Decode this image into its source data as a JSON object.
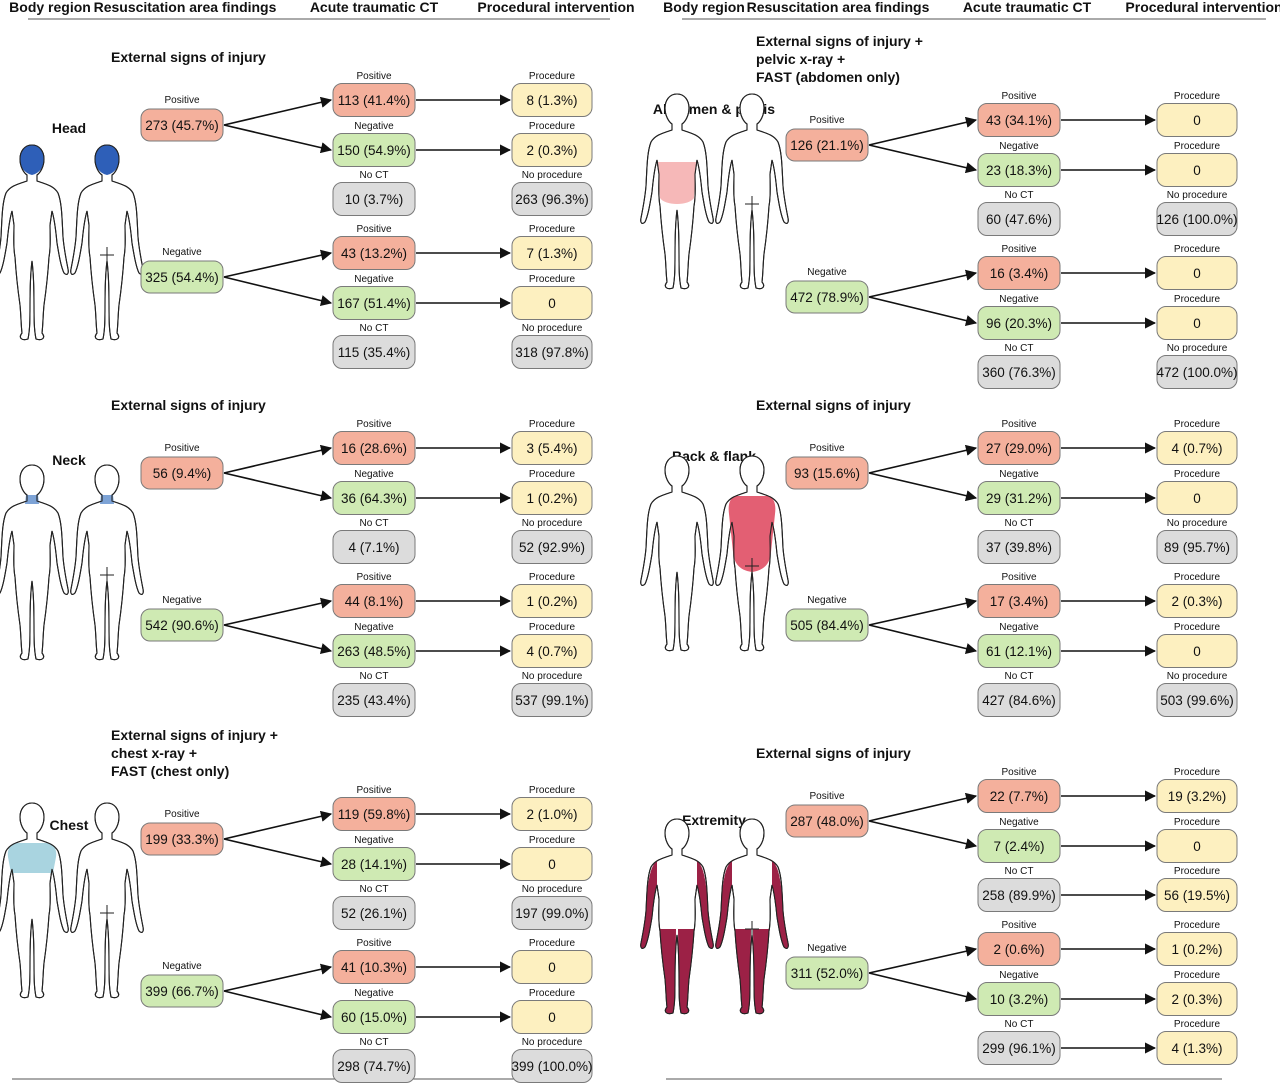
{
  "colors": {
    "positive_fill": "#f4b09c",
    "negative_fill": "#cfeab3",
    "noct_fill": "#dcdcdc",
    "procedure_fill": "#fdf0c0",
    "head_highlight": "#2e5fb8",
    "neck_highlight": "#7da3d6",
    "chest_highlight": "#a9d4e0",
    "abdomen_highlight": "#f6b8b8",
    "back_highlight": "#e35f73",
    "extremity_highlight": "#9c2146"
  },
  "headers": {
    "left": [
      "Body region",
      "Resuscitation area findings",
      "Acute traumatic CT",
      "Procedural intervention"
    ],
    "right": [
      "Body region",
      "Resuscitation area findings",
      "Acute traumatic CT",
      "Procedural intervention"
    ]
  },
  "panels": [
    {
      "id": "head",
      "region": "Head",
      "highlight": "head",
      "title": [
        "External signs of injury"
      ],
      "groups": [
        {
          "label": "Positive",
          "kind": "positive",
          "value": "273 (45.7%)",
          "ct": [
            {
              "label": "Positive",
              "kind": "positive",
              "value": "113 (41.4%)",
              "proc_label": "Procedure",
              "proc_value": "8 (1.3%)",
              "proc_kind": "procedure"
            },
            {
              "label": "Negative",
              "kind": "negative",
              "value": "150 (54.9%)",
              "proc_label": "Procedure",
              "proc_value": "2 (0.3%)",
              "proc_kind": "procedure"
            },
            {
              "label": "No CT",
              "kind": "noct",
              "value": "10 (3.7%)",
              "proc_label": "No procedure",
              "proc_value": "263 (96.3%)",
              "proc_kind": "noct"
            }
          ]
        },
        {
          "label": "Negative",
          "kind": "negative",
          "value": "325 (54.4%)",
          "ct": [
            {
              "label": "Positive",
              "kind": "positive",
              "value": "43 (13.2%)",
              "proc_label": "Procedure",
              "proc_value": "7 (1.3%)",
              "proc_kind": "procedure"
            },
            {
              "label": "Negative",
              "kind": "negative",
              "value": "167 (51.4%)",
              "proc_label": "Procedure",
              "proc_value": "0",
              "proc_kind": "procedure"
            },
            {
              "label": "No CT",
              "kind": "noct",
              "value": "115 (35.4%)",
              "proc_label": "No procedure",
              "proc_value": "318 (97.8%)",
              "proc_kind": "noct"
            }
          ]
        }
      ]
    },
    {
      "id": "neck",
      "region": "Neck",
      "highlight": "neck",
      "title": [
        "External signs of injury"
      ],
      "groups": [
        {
          "label": "Positive",
          "kind": "positive",
          "value": "56 (9.4%)",
          "ct": [
            {
              "label": "Positive",
              "kind": "positive",
              "value": "16 (28.6%)",
              "proc_label": "Procedure",
              "proc_value": "3 (5.4%)",
              "proc_kind": "procedure"
            },
            {
              "label": "Negative",
              "kind": "negative",
              "value": "36 (64.3%)",
              "proc_label": "Procedure",
              "proc_value": "1 (0.2%)",
              "proc_kind": "procedure"
            },
            {
              "label": "No CT",
              "kind": "noct",
              "value": "4 (7.1%)",
              "proc_label": "No procedure",
              "proc_value": "52 (92.9%)",
              "proc_kind": "noct"
            }
          ]
        },
        {
          "label": "Negative",
          "kind": "negative",
          "value": "542 (90.6%)",
          "ct": [
            {
              "label": "Positive",
              "kind": "positive",
              "value": "44 (8.1%)",
              "proc_label": "Procedure",
              "proc_value": "1 (0.2%)",
              "proc_kind": "procedure"
            },
            {
              "label": "Negative",
              "kind": "negative",
              "value": "263 (48.5%)",
              "proc_label": "Procedure",
              "proc_value": "4 (0.7%)",
              "proc_kind": "procedure"
            },
            {
              "label": "No CT",
              "kind": "noct",
              "value": "235 (43.4%)",
              "proc_label": "No procedure",
              "proc_value": "537 (99.1%)",
              "proc_kind": "noct"
            }
          ]
        }
      ]
    },
    {
      "id": "chest",
      "region": "Chest",
      "highlight": "chest",
      "title": [
        "External signs of injury +",
        "chest x-ray +",
        "FAST (chest only)"
      ],
      "groups": [
        {
          "label": "Positive",
          "kind": "positive",
          "value": "199 (33.3%)",
          "ct": [
            {
              "label": "Positive",
              "kind": "positive",
              "value": "119 (59.8%)",
              "proc_label": "Procedure",
              "proc_value": "2 (1.0%)",
              "proc_kind": "procedure"
            },
            {
              "label": "Negative",
              "kind": "negative",
              "value": "28 (14.1%)",
              "proc_label": "Procedure",
              "proc_value": "0",
              "proc_kind": "procedure"
            },
            {
              "label": "No CT",
              "kind": "noct",
              "value": "52 (26.1%)",
              "proc_label": "No procedure",
              "proc_value": "197 (99.0%)",
              "proc_kind": "noct"
            }
          ]
        },
        {
          "label": "Negative",
          "kind": "negative",
          "value": "399 (66.7%)",
          "ct": [
            {
              "label": "Positive",
              "kind": "positive",
              "value": "41 (10.3%)",
              "proc_label": "Procedure",
              "proc_value": "0",
              "proc_kind": "procedure"
            },
            {
              "label": "Negative",
              "kind": "negative",
              "value": "60 (15.0%)",
              "proc_label": "Procedure",
              "proc_value": "0",
              "proc_kind": "procedure"
            },
            {
              "label": "No CT",
              "kind": "noct",
              "value": "298 (74.7%)",
              "proc_label": "No procedure",
              "proc_value": "399 (100.0%)",
              "proc_kind": "noct"
            }
          ]
        }
      ]
    },
    {
      "id": "abdomen",
      "region": "Abdomen & pelvis",
      "highlight": "abdomen",
      "title": [
        "External signs of injury +",
        "pelvic x-ray +",
        "FAST (abdomen only)"
      ],
      "groups": [
        {
          "label": "Positive",
          "kind": "positive",
          "value": "126 (21.1%)",
          "ct": [
            {
              "label": "Positive",
              "kind": "positive",
              "value": "43 (34.1%)",
              "proc_label": "Procedure",
              "proc_value": "0",
              "proc_kind": "procedure"
            },
            {
              "label": "Negative",
              "kind": "negative",
              "value": "23 (18.3%)",
              "proc_label": "Procedure",
              "proc_value": "0",
              "proc_kind": "procedure"
            },
            {
              "label": "No CT",
              "kind": "noct",
              "value": "60 (47.6%)",
              "proc_label": "No procedure",
              "proc_value": "126 (100.0%)",
              "proc_kind": "noct"
            }
          ]
        },
        {
          "label": "Negative",
          "kind": "negative",
          "value": "472 (78.9%)",
          "ct": [
            {
              "label": "Positive",
              "kind": "positive",
              "value": "16 (3.4%)",
              "proc_label": "Procedure",
              "proc_value": "0",
              "proc_kind": "procedure"
            },
            {
              "label": "Negative",
              "kind": "negative",
              "value": "96 (20.3%)",
              "proc_label": "Procedure",
              "proc_value": "0",
              "proc_kind": "procedure"
            },
            {
              "label": "No CT",
              "kind": "noct",
              "value": "360 (76.3%)",
              "proc_label": "No procedure",
              "proc_value": "472 (100.0%)",
              "proc_kind": "noct"
            }
          ]
        }
      ]
    },
    {
      "id": "back",
      "region": "Back & flank",
      "highlight": "back",
      "title": [
        "External signs of injury"
      ],
      "groups": [
        {
          "label": "Positive",
          "kind": "positive",
          "value": "93 (15.6%)",
          "ct": [
            {
              "label": "Positive",
              "kind": "positive",
              "value": "27 (29.0%)",
              "proc_label": "Procedure",
              "proc_value": "4 (0.7%)",
              "proc_kind": "procedure"
            },
            {
              "label": "Negative",
              "kind": "negative",
              "value": "29 (31.2%)",
              "proc_label": "Procedure",
              "proc_value": "0",
              "proc_kind": "procedure"
            },
            {
              "label": "No CT",
              "kind": "noct",
              "value": "37 (39.8%)",
              "proc_label": "No procedure",
              "proc_value": "89 (95.7%)",
              "proc_kind": "noct"
            }
          ]
        },
        {
          "label": "Negative",
          "kind": "negative",
          "value": "505 (84.4%)",
          "ct": [
            {
              "label": "Positive",
              "kind": "positive",
              "value": "17 (3.4%)",
              "proc_label": "Procedure",
              "proc_value": "2 (0.3%)",
              "proc_kind": "procedure"
            },
            {
              "label": "Negative",
              "kind": "negative",
              "value": "61 (12.1%)",
              "proc_label": "Procedure",
              "proc_value": "0",
              "proc_kind": "procedure"
            },
            {
              "label": "No CT",
              "kind": "noct",
              "value": "427 (84.6%)",
              "proc_label": "No procedure",
              "proc_value": "503 (99.6%)",
              "proc_kind": "noct"
            }
          ]
        }
      ]
    },
    {
      "id": "extremity",
      "region": "Extremity",
      "highlight": "extremity",
      "title": [
        "External signs of injury"
      ],
      "groups": [
        {
          "label": "Positive",
          "kind": "positive",
          "value": "287 (48.0%)",
          "ct": [
            {
              "label": "Positive",
              "kind": "positive",
              "value": "22 (7.7%)",
              "proc_label": "Procedure",
              "proc_value": "19 (3.2%)",
              "proc_kind": "procedure"
            },
            {
              "label": "Negative",
              "kind": "negative",
              "value": "7 (2.4%)",
              "proc_label": "Procedure",
              "proc_value": "0",
              "proc_kind": "procedure"
            },
            {
              "label": "No CT",
              "kind": "noct",
              "value": "258 (89.9%)",
              "proc_label": "Procedure",
              "proc_value": "56 (19.5%)",
              "proc_kind": "procedure"
            }
          ]
        },
        {
          "label": "Negative",
          "kind": "negative",
          "value": "311 (52.0%)",
          "ct": [
            {
              "label": "Positive",
              "kind": "positive",
              "value": "2 (0.6%)",
              "proc_label": "Procedure",
              "proc_value": "1 (0.2%)",
              "proc_kind": "procedure"
            },
            {
              "label": "Negative",
              "kind": "negative",
              "value": "10 (3.2%)",
              "proc_label": "Procedure",
              "proc_value": "2 (0.3%)",
              "proc_kind": "procedure"
            },
            {
              "label": "No CT",
              "kind": "noct",
              "value": "299 (96.1%)",
              "proc_label": "Procedure",
              "proc_value": "4 (1.3%)",
              "proc_kind": "procedure"
            }
          ]
        }
      ]
    }
  ]
}
